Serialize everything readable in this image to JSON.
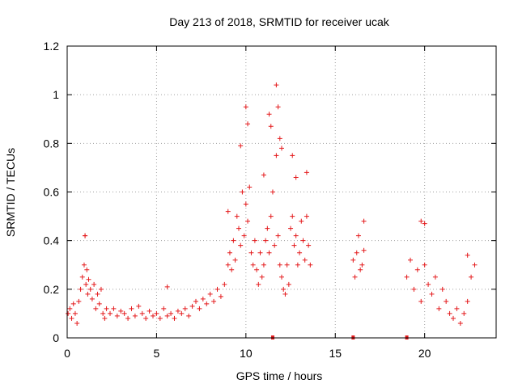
{
  "chart_data": {
    "type": "scatter",
    "title": "Day 213 of 2018, SRMTID for receiver ucak",
    "xlabel": "GPS time / hours",
    "ylabel": "SRMTID / TECUs",
    "xlim": [
      0,
      24
    ],
    "ylim": [
      0,
      1.2
    ],
    "xticks": [
      0,
      5,
      10,
      15,
      20
    ],
    "xtick_labels": [
      "0",
      "5",
      "10",
      "15",
      "20"
    ],
    "yticks": [
      0,
      0.2,
      0.4,
      0.6,
      0.8,
      1.0,
      1.2
    ],
    "ytick_labels": [
      "0",
      "0.2",
      "0.4",
      "0.6",
      "0.8",
      "1",
      "1.2"
    ],
    "grid": true,
    "marker": "+",
    "series": [
      {
        "name": "SRMTID",
        "color": "#e41a1c",
        "x": [
          0.05,
          0.15,
          0.25,
          0.35,
          0.45,
          0.55,
          0.65,
          0.75,
          0.85,
          0.95,
          1.0,
          1.05,
          1.1,
          1.15,
          1.2,
          1.3,
          1.4,
          1.5,
          1.6,
          1.7,
          1.8,
          1.9,
          2.0,
          2.1,
          2.2,
          2.4,
          2.6,
          2.8,
          3.0,
          3.2,
          3.4,
          3.6,
          3.8,
          4.0,
          4.2,
          4.4,
          4.6,
          4.8,
          5.0,
          5.2,
          5.4,
          5.6,
          5.8,
          6.0,
          6.2,
          6.4,
          6.6,
          6.8,
          7.0,
          7.2,
          7.4,
          7.6,
          7.8,
          8.0,
          8.2,
          8.4,
          8.6,
          8.8,
          9.0,
          9.1,
          9.2,
          9.3,
          9.4,
          9.5,
          9.6,
          9.7,
          9.8,
          9.9,
          10.0,
          10.1,
          10.2,
          10.3,
          10.4,
          10.5,
          10.6,
          10.7,
          10.8,
          10.9,
          11.0,
          11.1,
          11.2,
          11.3,
          11.4,
          11.5,
          11.6,
          11.7,
          11.8,
          11.9,
          12.0,
          12.1,
          12.2,
          12.3,
          12.4,
          12.5,
          12.6,
          12.7,
          12.8,
          12.9,
          13.0,
          13.1,
          13.2,
          13.3,
          13.4,
          13.5,
          13.6,
          16.0,
          16.1,
          16.2,
          16.3,
          16.4,
          16.5,
          16.6,
          19.0,
          19.2,
          19.4,
          19.6,
          19.8,
          20.0,
          20.2,
          20.4,
          20.6,
          20.8,
          21.0,
          21.2,
          21.4,
          21.6,
          21.8,
          22.0,
          22.2,
          22.4,
          22.6,
          22.8,
          1.0,
          5.6,
          9.0,
          9.7,
          10.0,
          10.1,
          11.0,
          11.3,
          11.4,
          11.7,
          11.8,
          11.9,
          12.0,
          12.6,
          12.8,
          13.4,
          16.6,
          19.8,
          20.0,
          22.4
        ],
        "y": [
          0.1,
          0.12,
          0.08,
          0.14,
          0.1,
          0.06,
          0.15,
          0.2,
          0.25,
          0.3,
          0.42,
          0.22,
          0.28,
          0.18,
          0.24,
          0.2,
          0.16,
          0.22,
          0.12,
          0.18,
          0.14,
          0.2,
          0.1,
          0.08,
          0.12,
          0.1,
          0.12,
          0.09,
          0.11,
          0.1,
          0.08,
          0.12,
          0.09,
          0.13,
          0.1,
          0.08,
          0.11,
          0.09,
          0.1,
          0.08,
          0.12,
          0.09,
          0.1,
          0.08,
          0.11,
          0.1,
          0.12,
          0.09,
          0.13,
          0.15,
          0.12,
          0.16,
          0.14,
          0.18,
          0.15,
          0.2,
          0.17,
          0.22,
          0.3,
          0.35,
          0.28,
          0.4,
          0.32,
          0.5,
          0.45,
          0.38,
          0.6,
          0.42,
          0.55,
          0.48,
          0.62,
          0.35,
          0.3,
          0.4,
          0.28,
          0.22,
          0.35,
          0.25,
          0.3,
          0.4,
          0.45,
          0.35,
          0.5,
          0.6,
          0.38,
          0.75,
          0.42,
          0.3,
          0.25,
          0.2,
          0.18,
          0.3,
          0.22,
          0.45,
          0.5,
          0.38,
          0.42,
          0.3,
          0.35,
          0.48,
          0.4,
          0.32,
          0.5,
          0.38,
          0.3,
          0.32,
          0.25,
          0.35,
          0.42,
          0.28,
          0.3,
          0.36,
          0.25,
          0.32,
          0.2,
          0.28,
          0.15,
          0.3,
          0.22,
          0.18,
          0.25,
          0.12,
          0.2,
          0.15,
          0.1,
          0.08,
          0.12,
          0.06,
          0.1,
          0.15,
          0.25,
          0.3,
          0.42,
          0.21,
          0.52,
          0.79,
          0.95,
          0.88,
          0.67,
          0.92,
          0.87,
          1.04,
          0.95,
          0.82,
          0.78,
          0.75,
          0.66,
          0.68,
          0.48,
          0.48,
          0.47,
          0.34
        ]
      }
    ],
    "gap_markers_x": [
      11.5,
      16.0,
      19.0
    ]
  }
}
